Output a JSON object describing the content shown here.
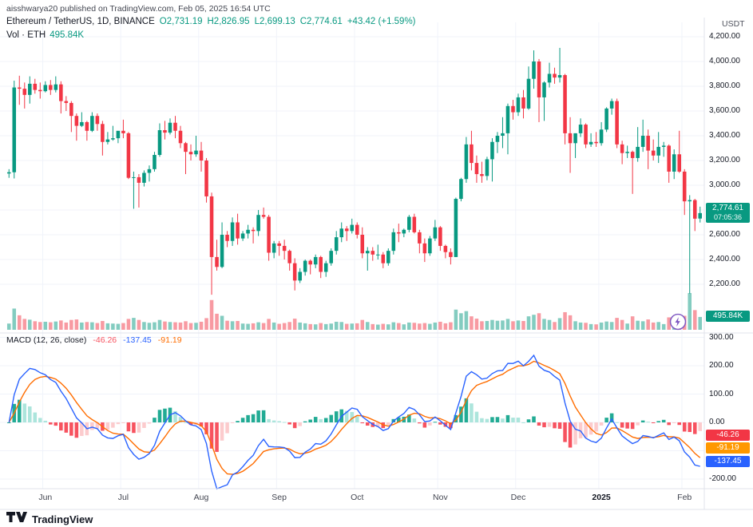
{
  "attribution": "aisshwarya20 published on TradingView.com, Feb 05, 2025 16:54 UTC",
  "header": {
    "symbol": "Ethereum / TetherUS, 1D, BINANCE",
    "ohlc": {
      "o": "O2,731.19",
      "h": "H2,826.95",
      "l": "L2,699.13",
      "c": "C2,774.61",
      "change": "+43.42 (+1.59%)"
    },
    "quote_currency": "USDT",
    "volume_label": "Vol · ETH",
    "volume_value": "495.84K"
  },
  "price_badge": {
    "price": "2,774.61",
    "countdown": "07:05:36",
    "value": 2774.61
  },
  "volume_badge": {
    "label": "495.84K"
  },
  "macd": {
    "legend_title": "MACD (12, 26, close)",
    "histogram_value": "-46.26",
    "macd_value": "-137.45",
    "signal_value": "-91.19",
    "badges": [
      {
        "label": "-46.26",
        "value": -46.26,
        "color": "#F23645"
      },
      {
        "label": "-91.19",
        "value": -91.19,
        "color": "#FF9800"
      },
      {
        "label": "-137.45",
        "value": -137.45,
        "color": "#2962FF"
      }
    ]
  },
  "logo_text": "TradingView",
  "colors": {
    "up": "#089981",
    "down": "#F23645",
    "vol_up": "rgba(8,153,129,0.5)",
    "vol_down": "rgba(242,54,69,0.5)",
    "macd_line": "#2962FF",
    "signal_line": "#FF6D00",
    "hist_grow_above": "#22AB94",
    "hist_fall_above": "#ACE5DC",
    "hist_fall_below": "#F7525F",
    "hist_grow_below": "#FCCBCD",
    "grid": "#F0F3FA",
    "divider": "#E0E3EB",
    "axis_text": "#131722"
  },
  "chart_data": {
    "type": "candlestick",
    "title": "Ethereum / TetherUS, 1D, BINANCE with Volume and MACD(12,26,close)",
    "price_axis_ticks": [
      "4,200.00",
      "4,000.00",
      "3,800.00",
      "3,600.00",
      "3,400.00",
      "3,200.00",
      "3,000.00",
      "2,800.00",
      "2,600.00",
      "2,400.00",
      "2,200.00"
    ],
    "macd_axis_ticks": [
      "300.00",
      "200.00",
      "100.00",
      "0.00",
      "-100.00",
      "-200.00"
    ],
    "x_labels": [
      {
        "label": "Jun",
        "idx": 7
      },
      {
        "label": "Jul",
        "idx": 22
      },
      {
        "label": "Aug",
        "idx": 37
      },
      {
        "label": "Sep",
        "idx": 52
      },
      {
        "label": "Oct",
        "idx": 67
      },
      {
        "label": "Nov",
        "idx": 83
      },
      {
        "label": "Dec",
        "idx": 98
      },
      {
        "label": "2025",
        "idx": 114,
        "bold": true
      },
      {
        "label": "Feb",
        "idx": 130
      }
    ],
    "candle_fields": [
      "open",
      "high",
      "low",
      "close",
      "volume_thousand_ETH"
    ],
    "candles": [
      [
        3095,
        3130,
        3060,
        3105,
        240
      ],
      [
        3105,
        3845,
        3055,
        3790,
        820
      ],
      [
        3790,
        3885,
        3650,
        3780,
        560
      ],
      [
        3780,
        3830,
        3620,
        3730,
        420
      ],
      [
        3730,
        3880,
        3660,
        3820,
        390
      ],
      [
        3820,
        3860,
        3740,
        3770,
        330
      ],
      [
        3770,
        3830,
        3700,
        3760,
        300
      ],
      [
        3760,
        3840,
        3750,
        3810,
        310
      ],
      [
        3810,
        3850,
        3730,
        3770,
        290
      ],
      [
        3770,
        3880,
        3750,
        3815,
        320
      ],
      [
        3815,
        3840,
        3580,
        3680,
        360
      ],
      [
        3680,
        3720,
        3600,
        3665,
        280
      ],
      [
        3665,
        3680,
        3430,
        3560,
        380
      ],
      [
        3560,
        3580,
        3360,
        3480,
        400
      ],
      [
        3480,
        3590,
        3470,
        3510,
        280
      ],
      [
        3510,
        3520,
        3360,
        3440,
        300
      ],
      [
        3440,
        3590,
        3430,
        3560,
        290
      ],
      [
        3560,
        3580,
        3440,
        3495,
        260
      ],
      [
        3495,
        3520,
        3240,
        3350,
        340
      ],
      [
        3350,
        3430,
        3330,
        3370,
        250
      ],
      [
        3370,
        3480,
        3360,
        3380,
        240
      ],
      [
        3380,
        3410,
        3340,
        3440,
        230
      ],
      [
        3440,
        3530,
        3380,
        3420,
        260
      ],
      [
        3420,
        3430,
        3050,
        3060,
        420
      ],
      [
        3060,
        3110,
        2810,
        3065,
        460
      ],
      [
        3065,
        3090,
        2820,
        3020,
        380
      ],
      [
        3020,
        3120,
        2990,
        3100,
        300
      ],
      [
        3100,
        3160,
        3030,
        3130,
        270
      ],
      [
        3130,
        3270,
        3110,
        3245,
        290
      ],
      [
        3245,
        3500,
        3230,
        3445,
        380
      ],
      [
        3445,
        3520,
        3370,
        3425,
        320
      ],
      [
        3425,
        3540,
        3410,
        3505,
        300
      ],
      [
        3505,
        3560,
        3380,
        3440,
        290
      ],
      [
        3440,
        3480,
        3300,
        3340,
        280
      ],
      [
        3340,
        3350,
        3090,
        3270,
        330
      ],
      [
        3270,
        3330,
        3200,
        3250,
        260
      ],
      [
        3250,
        3400,
        3230,
        3280,
        270
      ],
      [
        3280,
        3350,
        3110,
        3200,
        310
      ],
      [
        3200,
        3220,
        2860,
        2910,
        450
      ],
      [
        2910,
        2940,
        2115,
        2420,
        1150
      ],
      [
        2420,
        2560,
        2310,
        2340,
        620
      ],
      [
        2340,
        2700,
        2330,
        2600,
        540
      ],
      [
        2600,
        2630,
        2500,
        2550,
        350
      ],
      [
        2550,
        2740,
        2510,
        2700,
        330
      ],
      [
        2700,
        2770,
        2520,
        2570,
        340
      ],
      [
        2570,
        2630,
        2550,
        2610,
        240
      ],
      [
        2610,
        2680,
        2570,
        2640,
        230
      ],
      [
        2640,
        2660,
        2530,
        2630,
        250
      ],
      [
        2630,
        2800,
        2590,
        2760,
        290
      ],
      [
        2760,
        2820,
        2730,
        2745,
        260
      ],
      [
        2745,
        2760,
        2390,
        2455,
        420
      ],
      [
        2455,
        2550,
        2410,
        2530,
        280
      ],
      [
        2530,
        2550,
        2430,
        2510,
        230
      ],
      [
        2510,
        2560,
        2400,
        2470,
        260
      ],
      [
        2470,
        2480,
        2310,
        2370,
        300
      ],
      [
        2370,
        2410,
        2150,
        2230,
        430
      ],
      [
        2230,
        2330,
        2210,
        2300,
        280
      ],
      [
        2300,
        2400,
        2270,
        2390,
        250
      ],
      [
        2390,
        2400,
        2280,
        2360,
        220
      ],
      [
        2360,
        2440,
        2330,
        2420,
        210
      ],
      [
        2420,
        2430,
        2250,
        2300,
        260
      ],
      [
        2300,
        2390,
        2260,
        2370,
        220
      ],
      [
        2370,
        2490,
        2350,
        2470,
        240
      ],
      [
        2470,
        2630,
        2440,
        2580,
        310
      ],
      [
        2580,
        2700,
        2540,
        2650,
        300
      ],
      [
        2650,
        2670,
        2550,
        2630,
        230
      ],
      [
        2630,
        2730,
        2610,
        2680,
        240
      ],
      [
        2680,
        2700,
        2570,
        2600,
        250
      ],
      [
        2600,
        2660,
        2410,
        2450,
        380
      ],
      [
        2450,
        2500,
        2310,
        2470,
        300
      ],
      [
        2470,
        2500,
        2390,
        2440,
        220
      ],
      [
        2440,
        2520,
        2400,
        2440,
        200
      ],
      [
        2440,
        2460,
        2330,
        2370,
        230
      ],
      [
        2370,
        2490,
        2350,
        2470,
        210
      ],
      [
        2470,
        2650,
        2440,
        2620,
        290
      ],
      [
        2620,
        2690,
        2540,
        2610,
        260
      ],
      [
        2610,
        2650,
        2580,
        2640,
        210
      ],
      [
        2640,
        2760,
        2620,
        2745,
        280
      ],
      [
        2745,
        2770,
        2610,
        2620,
        270
      ],
      [
        2620,
        2640,
        2450,
        2530,
        240
      ],
      [
        2530,
        2570,
        2380,
        2450,
        260
      ],
      [
        2450,
        2590,
        2430,
        2570,
        230
      ],
      [
        2570,
        2720,
        2550,
        2660,
        280
      ],
      [
        2660,
        2670,
        2470,
        2510,
        310
      ],
      [
        2510,
        2520,
        2410,
        2460,
        250
      ],
      [
        2460,
        2490,
        2360,
        2420,
        290
      ],
      [
        2420,
        2900,
        2420,
        2890,
        780
      ],
      [
        2890,
        3060,
        2870,
        3050,
        640
      ],
      [
        3050,
        3390,
        3020,
        3330,
        720
      ],
      [
        3330,
        3440,
        3120,
        3180,
        520
      ],
      [
        3180,
        3240,
        3020,
        3090,
        430
      ],
      [
        3090,
        3190,
        3020,
        3075,
        330
      ],
      [
        3075,
        3230,
        3040,
        3210,
        340
      ],
      [
        3210,
        3380,
        3030,
        3350,
        380
      ],
      [
        3350,
        3430,
        3260,
        3400,
        350
      ],
      [
        3400,
        3550,
        3300,
        3420,
        360
      ],
      [
        3420,
        3660,
        3250,
        3640,
        420
      ],
      [
        3640,
        3690,
        3530,
        3590,
        330
      ],
      [
        3590,
        3740,
        3560,
        3710,
        360
      ],
      [
        3710,
        3770,
        3540,
        3620,
        340
      ],
      [
        3620,
        3960,
        3610,
        3860,
        520
      ],
      [
        3860,
        4090,
        3780,
        4000,
        580
      ],
      [
        4000,
        4020,
        3510,
        3710,
        640
      ],
      [
        3710,
        3840,
        3520,
        3830,
        420
      ],
      [
        3830,
        3990,
        3790,
        3900,
        380
      ],
      [
        3900,
        3950,
        3820,
        3870,
        300
      ],
      [
        3870,
        4110,
        3830,
        3890,
        450
      ],
      [
        3890,
        3900,
        3330,
        3420,
        680
      ],
      [
        3420,
        3550,
        3100,
        3340,
        560
      ],
      [
        3340,
        3420,
        3220,
        3420,
        330
      ],
      [
        3420,
        3540,
        3390,
        3490,
        280
      ],
      [
        3490,
        3500,
        3300,
        3330,
        270
      ],
      [
        3330,
        3420,
        3310,
        3350,
        220
      ],
      [
        3350,
        3430,
        3310,
        3340,
        210
      ],
      [
        3340,
        3510,
        3320,
        3450,
        280
      ],
      [
        3450,
        3630,
        3430,
        3620,
        320
      ],
      [
        3620,
        3700,
        3570,
        3680,
        300
      ],
      [
        3680,
        3700,
        3300,
        3330,
        460
      ],
      [
        3330,
        3360,
        3170,
        3260,
        380
      ],
      [
        3260,
        3320,
        3220,
        3270,
        240
      ],
      [
        3270,
        3280,
        2930,
        3220,
        520
      ],
      [
        3220,
        3470,
        3190,
        3310,
        350
      ],
      [
        3310,
        3530,
        3270,
        3400,
        330
      ],
      [
        3400,
        3450,
        3130,
        3280,
        400
      ],
      [
        3280,
        3370,
        3200,
        3240,
        280
      ],
      [
        3240,
        3430,
        3180,
        3310,
        300
      ],
      [
        3310,
        3350,
        3230,
        3320,
        220
      ],
      [
        3320,
        3330,
        3020,
        3110,
        480
      ],
      [
        3110,
        3290,
        3050,
        3250,
        320
      ],
      [
        3250,
        3440,
        3100,
        3110,
        360
      ],
      [
        3110,
        3130,
        2760,
        2870,
        540
      ],
      [
        2870,
        2920,
        2125,
        2880,
        1420
      ],
      [
        2880,
        2890,
        2630,
        2730,
        760
      ],
      [
        2731,
        2827,
        2699,
        2775,
        496
      ]
    ],
    "macd_indicator": {
      "params": "12, 26, close",
      "current_histogram": -46.26,
      "current_macd": -137.45,
      "current_signal": -91.19
    }
  }
}
